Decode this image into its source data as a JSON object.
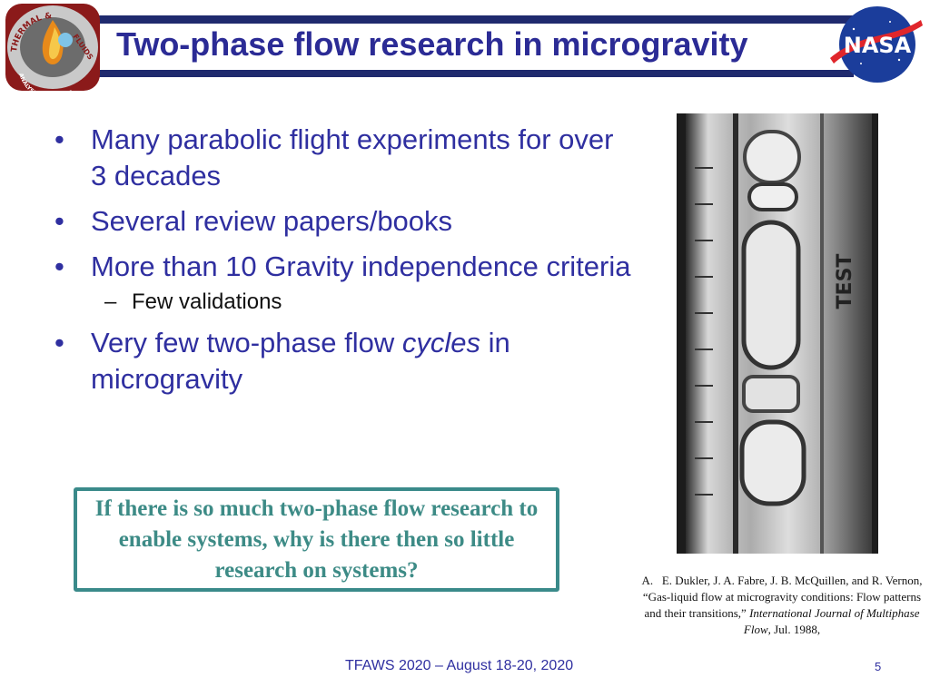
{
  "slide": {
    "title": "Two-phase flow research in microgravity",
    "logos": {
      "left_ring_top": "THERMAL &",
      "left_ring_right": "FLUIDS",
      "left_ring_bottom": "ANALYSIS WORKSHOP",
      "right": "NASA"
    },
    "bullets": [
      {
        "text": "Many parabolic flight experiments for over 3 decades"
      },
      {
        "text": "Several review papers/books"
      },
      {
        "text": "More than 10 Gravity independence criteria",
        "sub": "Few validations"
      },
      {
        "text_before": "Very few two-phase flow ",
        "text_italic": "cycles",
        "text_after": " in microgravity"
      }
    ],
    "bullet_glyph": "•",
    "sub_glyph": "–",
    "callout": "If there is so much two-phase flow research to enable systems, why is there then so little research on systems?",
    "photo_label": "TEST",
    "reference": {
      "marker": "A.",
      "authors_title": "E. Dukler, J. A. Fabre, J. B. McQuillen, and R. Vernon, “Gas-liquid flow at microgravity conditions: Flow patterns and their transitions,” ",
      "journal": "International Journal of Multiphase Flow",
      "date": ", Jul. 1988,"
    },
    "footer": "TFAWS 2020 – August 18-20, 2020",
    "page_number": "5",
    "colors": {
      "title": "#2b2b95",
      "rule": "#1f2a6e",
      "bullet_text": "#2f2fa0",
      "callout_border": "#3a8a8a",
      "callout_text": "#3d8b86"
    }
  }
}
